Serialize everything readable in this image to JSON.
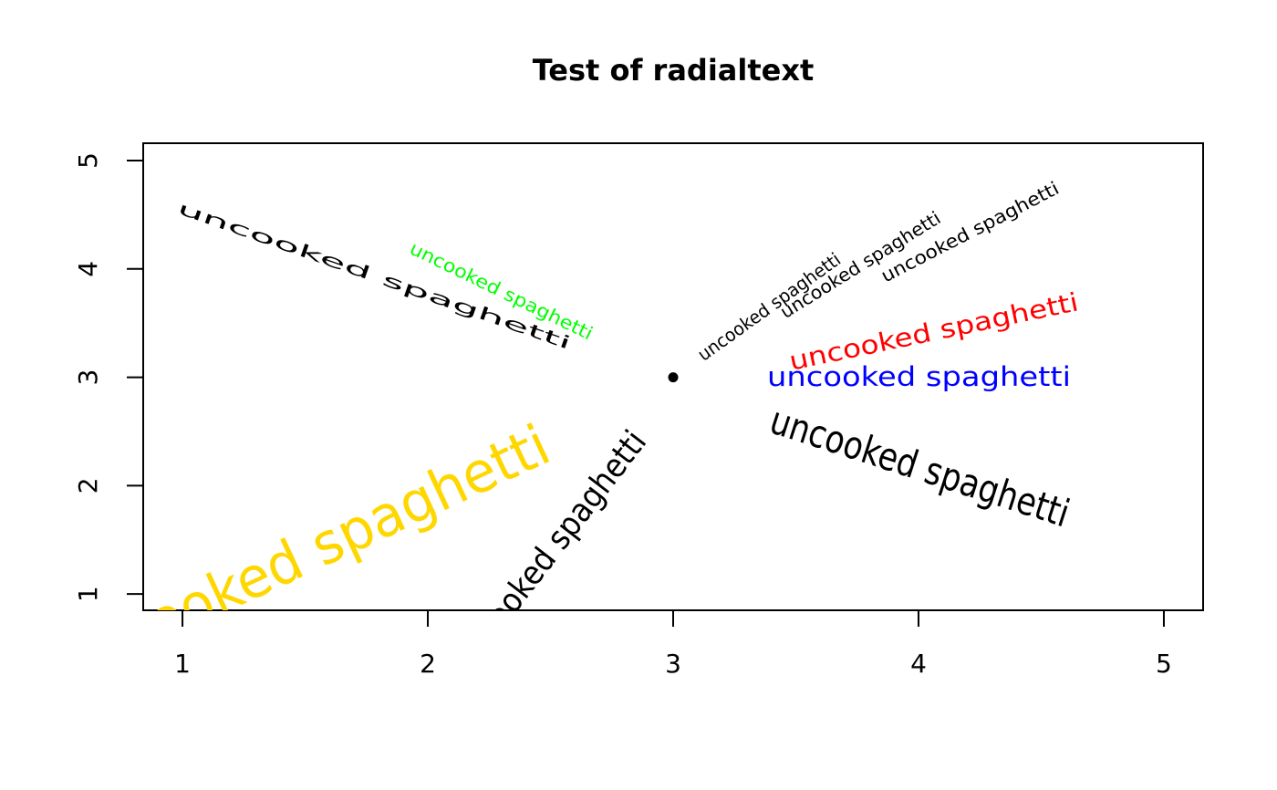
{
  "chart_data": {
    "type": "scatter",
    "title": "Test of radialtext",
    "x": [
      3
    ],
    "y": [
      3
    ],
    "color": "#000000",
    "xlim": [
      0.84,
      5.16
    ],
    "ylim": [
      0.85,
      5.16
    ],
    "xticks": [
      1,
      2,
      3,
      4,
      5
    ],
    "yticks": [
      1,
      2,
      3,
      4,
      5
    ],
    "annotations": [
      {
        "text": "uncooked spaghetti",
        "color": "#000000"
      },
      {
        "text": "uncooked spaghetti",
        "color": "#00ff00"
      },
      {
        "text": "uncooked spaghetti",
        "color": "#000000"
      },
      {
        "text": "uncooked spaghetti",
        "color": "#000000"
      },
      {
        "text": "uncooked spaghetti",
        "color": "#000000"
      },
      {
        "text": "uncooked spaghetti",
        "color": "#ff0000"
      },
      {
        "text": "uncooked spaghetti",
        "color": "#0000ff"
      },
      {
        "text": "uncooked spaghetti",
        "color": "#000000"
      },
      {
        "text": "uncooked spaghetti",
        "color": "#ffd700"
      },
      {
        "text": "uncooked spaghetti",
        "color": "#000000"
      }
    ]
  }
}
